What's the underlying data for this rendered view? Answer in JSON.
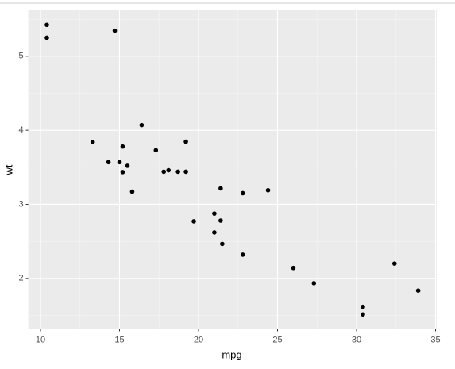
{
  "chart_data": {
    "type": "scatter",
    "x_label": "mpg",
    "y_label": "wt",
    "x": [
      21.0,
      21.0,
      22.8,
      21.4,
      18.7,
      18.1,
      14.3,
      24.4,
      22.8,
      19.2,
      17.8,
      16.4,
      17.3,
      15.2,
      10.4,
      10.4,
      14.7,
      32.4,
      30.4,
      33.9,
      21.5,
      15.5,
      15.2,
      13.3,
      19.2,
      27.3,
      26.0,
      30.4,
      15.8,
      19.7,
      15.0,
      21.4
    ],
    "values": [
      2.62,
      2.875,
      2.32,
      3.215,
      3.44,
      3.46,
      3.57,
      3.19,
      3.15,
      3.44,
      3.44,
      4.07,
      3.73,
      3.78,
      5.25,
      5.424,
      5.345,
      2.2,
      1.615,
      1.835,
      2.465,
      3.52,
      3.435,
      3.84,
      3.845,
      1.935,
      2.14,
      1.513,
      3.17,
      2.77,
      3.57,
      2.78
    ],
    "color": "#000000",
    "xlim": [
      9.225,
      35.075
    ],
    "ylim": [
      1.3175,
      5.6195
    ],
    "xticks": [
      10,
      15,
      20,
      25,
      30,
      35
    ],
    "yticks": [
      2,
      3,
      4,
      5
    ],
    "grid": true
  }
}
